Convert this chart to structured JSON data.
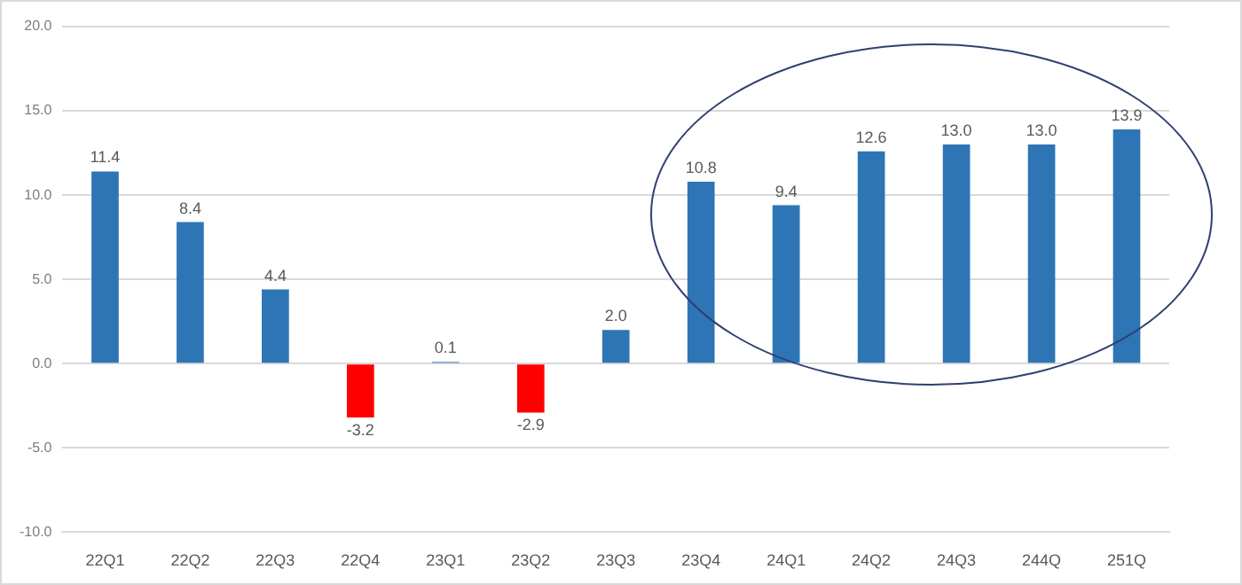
{
  "chart_data": {
    "type": "bar",
    "categories": [
      "22Q1",
      "22Q2",
      "22Q3",
      "22Q4",
      "23Q1",
      "23Q2",
      "23Q3",
      "23Q4",
      "24Q1",
      "24Q2",
      "24Q3",
      "244Q",
      "251Q"
    ],
    "values": [
      11.4,
      8.4,
      4.4,
      -3.2,
      0.1,
      -2.9,
      2.0,
      10.8,
      9.4,
      12.6,
      13.0,
      13.0,
      13.9
    ],
    "colors": [
      "#2e75b6",
      "#2e75b6",
      "#2e75b6",
      "#ff0000",
      "#2e75b6",
      "#ff0000",
      "#2e75b6",
      "#2e75b6",
      "#2e75b6",
      "#2e75b6",
      "#2e75b6",
      "#2e75b6",
      "#2e75b6"
    ],
    "ylim": [
      -10,
      20
    ],
    "yticks": [
      {
        "value": -10,
        "label": "-10.0"
      },
      {
        "value": -5,
        "label": "-5.0"
      },
      {
        "value": 0,
        "label": "0.0"
      },
      {
        "value": 5,
        "label": "5.0"
      },
      {
        "value": 10,
        "label": "10.0"
      },
      {
        "value": 15,
        "label": "15.0"
      },
      {
        "value": 20,
        "label": "20.0"
      }
    ],
    "value_labels": [
      "11.4",
      "8.4",
      "4.4",
      "-3.2",
      "0.1",
      "-2.9",
      "2.0",
      "10.8",
      "9.4",
      "12.6",
      "13.0",
      "13.0",
      "13.9"
    ],
    "grid": "y",
    "legend": false
  }
}
